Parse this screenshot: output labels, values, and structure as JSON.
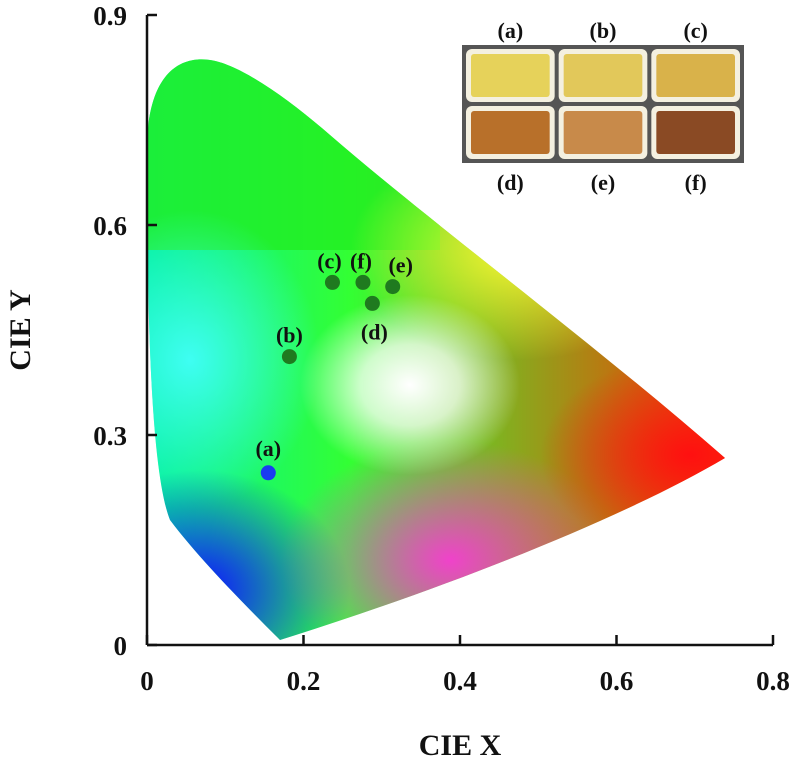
{
  "chart_data": {
    "type": "scatter",
    "title": "",
    "xlabel": "CIE X",
    "ylabel": "CIE Y",
    "xlim": [
      0,
      0.8
    ],
    "ylim": [
      0,
      0.9
    ],
    "x_ticks": [
      0,
      0.2,
      0.4,
      0.6,
      0.8
    ],
    "y_ticks": [
      0,
      0.3,
      0.6,
      0.9
    ],
    "x_tick_labels": [
      "0",
      "0.2",
      "0.4",
      "0.6",
      "0.8"
    ],
    "y_tick_labels": [
      "0",
      "0.3",
      "0.6",
      "0.9"
    ],
    "grid": false,
    "background": "CIE 1931 chromaticity diagram",
    "points": [
      {
        "label": "(a)",
        "x": 0.155,
        "y": 0.246,
        "color": "#1a3cf0"
      },
      {
        "label": "(b)",
        "x": 0.182,
        "y": 0.412,
        "color": "#1f7a1f"
      },
      {
        "label": "(c)",
        "x": 0.237,
        "y": 0.518,
        "color": "#1f7a1f"
      },
      {
        "label": "(f)",
        "x": 0.276,
        "y": 0.518,
        "color": "#1f7a1f"
      },
      {
        "label": "(e)",
        "x": 0.314,
        "y": 0.512,
        "color": "#1f7a1f"
      },
      {
        "label": "(d)",
        "x": 0.288,
        "y": 0.488,
        "color": "#1f7a1f"
      }
    ],
    "inset": {
      "description": "photographs of samples",
      "top_labels": [
        "(a)",
        "(b)",
        "(c)"
      ],
      "bottom_labels": [
        "(d)",
        "(e)",
        "(f)"
      ],
      "swatch_colors": [
        "#e6d25a",
        "#e2c85a",
        "#d9b24a",
        "#b8702a",
        "#c88a4a",
        "#8a4a24"
      ]
    }
  }
}
